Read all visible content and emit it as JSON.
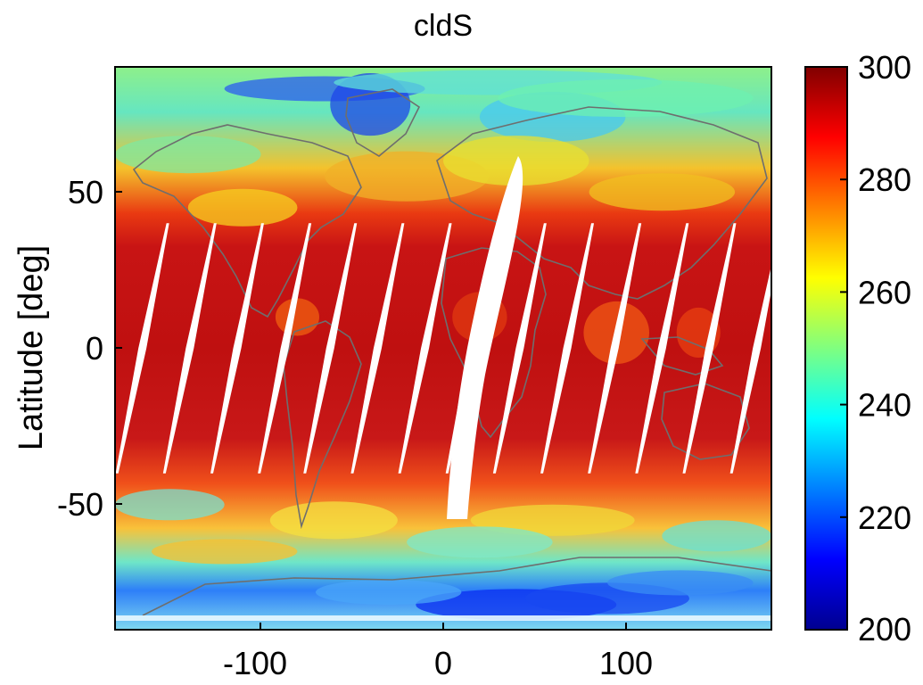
{
  "chart_data": {
    "type": "heatmap",
    "title": "cldS",
    "xlabel": "",
    "ylabel": "Latitude [deg]",
    "xlim": [
      -180,
      180
    ],
    "ylim": [
      -90,
      90
    ],
    "x_ticks": [
      -100,
      0,
      100
    ],
    "y_ticks": [
      50,
      0,
      -50
    ],
    "colorbar": {
      "colormap": "jet",
      "range": [
        200,
        300
      ],
      "ticks": [
        300,
        280,
        260,
        240,
        220,
        200
      ]
    },
    "swath_gaps": {
      "description": "white diagonal strips of missing data between about 40N and 40S",
      "center_longitudes_at_equator": [
        -165,
        -139,
        -113,
        -87,
        -62,
        -36,
        -10,
        16,
        42,
        68,
        94,
        120,
        146,
        172
      ],
      "largest_gap_longitude": 20
    },
    "colors": {
      "jet_stops": [
        "#00008f",
        "#0000ff",
        "#00ffff",
        "#ffff00",
        "#ff0000",
        "#800000"
      ],
      "coastline": "#6e6e6e"
    }
  }
}
